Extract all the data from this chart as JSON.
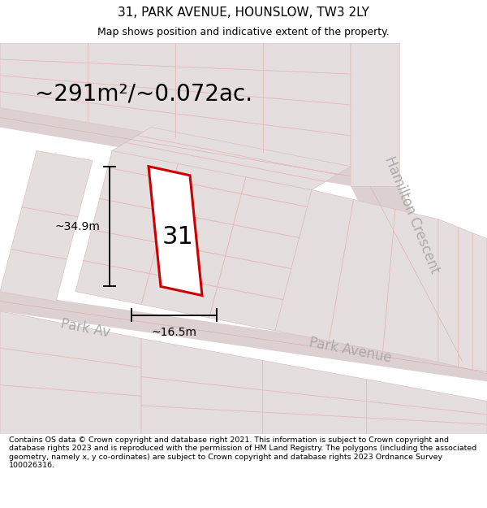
{
  "title": "31, PARK AVENUE, HOUNSLOW, TW3 2LY",
  "subtitle": "Map shows position and indicative extent of the property.",
  "area_text": "~291m²/~0.072ac.",
  "label_number": "31",
  "dim_height": "~34.9m",
  "dim_width": "~16.5m",
  "road_label_park_avenue_right": "Park Avenue",
  "road_label_park_ave_left": "Park Av",
  "road_label_hamilton": "Hamilton Crescent",
  "footer": "Contains OS data © Crown copyright and database right 2021. This information is subject to Crown copyright and database rights 2023 and is reproduced with the permission of HM Land Registry. The polygons (including the associated geometry, namely x, y co-ordinates) are subject to Crown copyright and database rights 2023 Ordnance Survey 100026316.",
  "bg_color": "#ffffff",
  "map_bg": "#f7f2f2",
  "block_color": "#e5dede",
  "road_color": "#ddd0d0",
  "subdiv_line_color": "#e8b8b8",
  "road_line_color": "#ddc0c0",
  "property_fill": "#ffffff",
  "property_edge": "#cc0000",
  "dim_color": "#000000",
  "text_color": "#000000",
  "road_text_color": "#aaaaaa",
  "title_fontsize": 11,
  "subtitle_fontsize": 9,
  "area_fontsize": 20,
  "label_fontsize": 22,
  "dim_fontsize": 10,
  "road_fontsize": 12,
  "footer_fontsize": 6.8
}
